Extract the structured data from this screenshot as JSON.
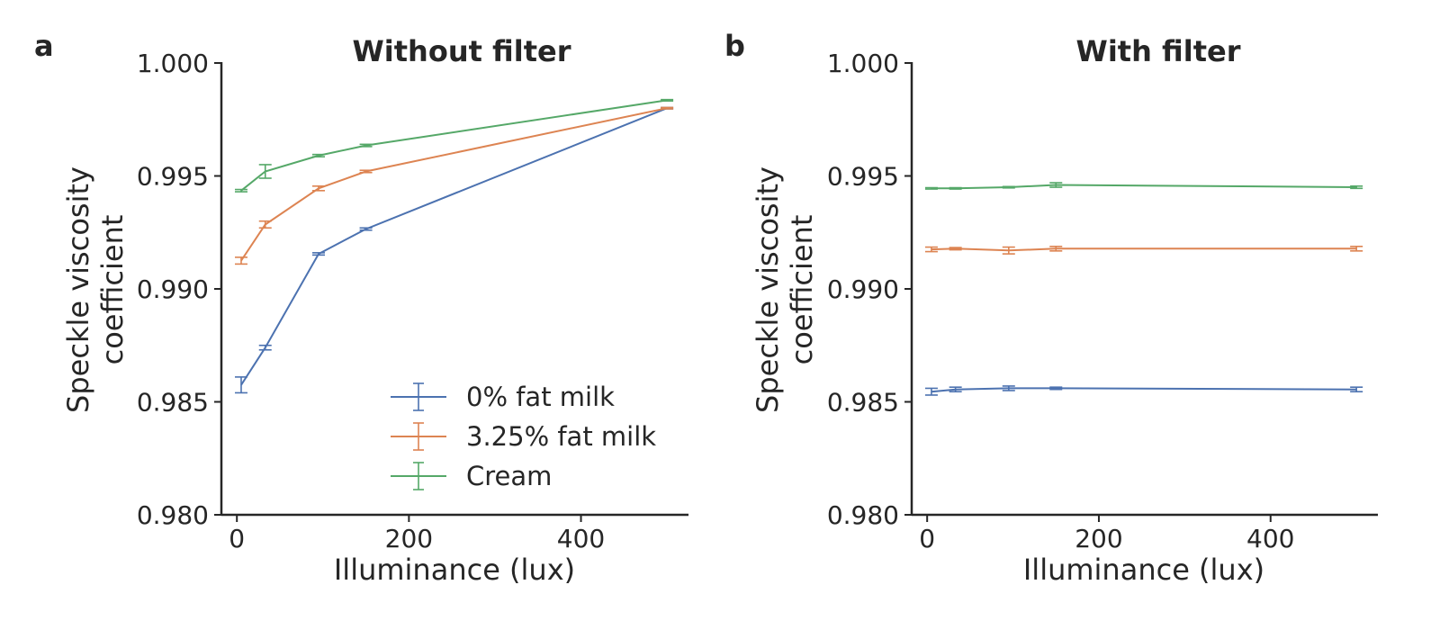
{
  "chart_data": [
    {
      "type": "line",
      "panel_label": "a",
      "title": "Without filter",
      "xlabel": "Illuminance (lux)",
      "ylabel_lines": [
        "Speckle viscosity",
        "coefficient"
      ],
      "xlim": [
        -18,
        525
      ],
      "ylim": [
        0.98,
        1.0
      ],
      "xticks": [
        0,
        200,
        400
      ],
      "xtick_labels": [
        "0",
        "200",
        "400"
      ],
      "yticks": [
        0.98,
        0.985,
        0.99,
        0.995,
        1.0
      ],
      "ytick_labels": [
        "0.980",
        "0.985",
        "0.990",
        "0.995",
        "1.000"
      ],
      "legend_position": "lower-right",
      "series": [
        {
          "name": "0% fat milk",
          "color": "#4c72b0",
          "x": [
            5,
            33,
            95,
            150,
            500
          ],
          "y": [
            0.98575,
            0.9874,
            0.99155,
            0.99265,
            0.998
          ],
          "err": [
            0.00035,
            0.0001,
            5e-05,
            5e-05,
            3e-05
          ]
        },
        {
          "name": "3.25% fat milk",
          "color": "#dd8452",
          "x": [
            5,
            33,
            95,
            150,
            500
          ],
          "y": [
            0.99125,
            0.99285,
            0.99445,
            0.9952,
            0.998
          ],
          "err": [
            0.00015,
            0.00015,
            0.0001,
            5e-05,
            3e-05
          ]
        },
        {
          "name": "Cream",
          "color": "#55a868",
          "x": [
            5,
            33,
            95,
            150,
            500
          ],
          "y": [
            0.99435,
            0.9952,
            0.9959,
            0.99635,
            0.99835
          ],
          "err": [
            5e-05,
            0.0003,
            5e-05,
            5e-05,
            3e-05
          ]
        }
      ]
    },
    {
      "type": "line",
      "panel_label": "b",
      "title": "With filter",
      "xlabel": "Illuminance (lux)",
      "ylabel_lines": [
        "Speckle viscosity",
        "coefficient"
      ],
      "xlim": [
        -18,
        525
      ],
      "ylim": [
        0.98,
        1.0
      ],
      "xticks": [
        0,
        200,
        400
      ],
      "xtick_labels": [
        "0",
        "200",
        "400"
      ],
      "yticks": [
        0.98,
        0.985,
        0.99,
        0.995,
        1.0
      ],
      "ytick_labels": [
        "0.980",
        "0.985",
        "0.990",
        "0.995",
        "1.000"
      ],
      "series": [
        {
          "name": "0% fat milk",
          "color": "#4c72b0",
          "x": [
            5,
            33,
            95,
            150,
            500
          ],
          "y": [
            0.98545,
            0.98555,
            0.9856,
            0.9856,
            0.98555
          ],
          "err": [
            0.00015,
            0.0001,
            0.0001,
            5e-05,
            0.0001
          ]
        },
        {
          "name": "3.25% fat milk",
          "color": "#dd8452",
          "x": [
            5,
            33,
            95,
            150,
            500
          ],
          "y": [
            0.99175,
            0.99178,
            0.9917,
            0.99178,
            0.99178
          ],
          "err": [
            0.0001,
            5e-05,
            0.00015,
            0.0001,
            0.0001
          ]
        },
        {
          "name": "Cream",
          "color": "#55a868",
          "x": [
            5,
            33,
            95,
            150,
            500
          ],
          "y": [
            0.99445,
            0.99445,
            0.9945,
            0.9946,
            0.9945
          ],
          "err": [
            3e-05,
            3e-05,
            3e-05,
            0.0001,
            5e-05
          ]
        }
      ]
    }
  ]
}
